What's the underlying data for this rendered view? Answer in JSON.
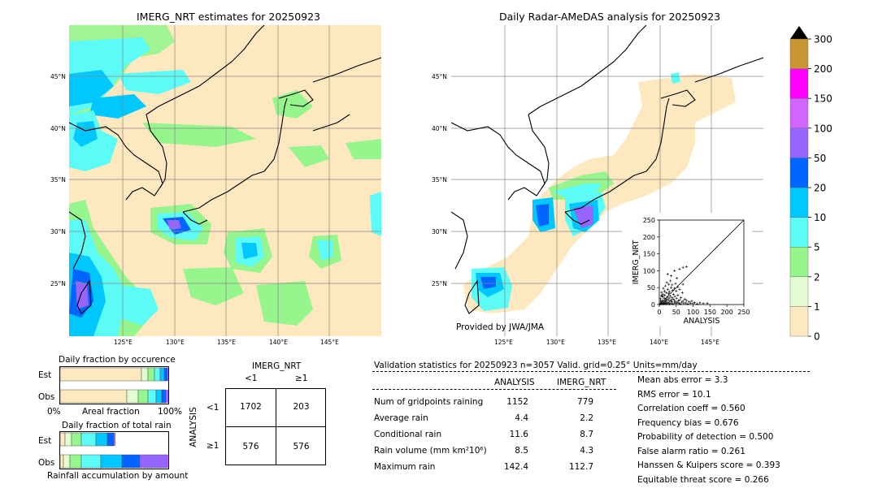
{
  "maps": {
    "left_title": "IMERG_NRT estimates for 20250923",
    "right_title": "Daily Radar-AMeDAS analysis for 20250923",
    "credit": "Provided by JWA/JMA",
    "lat_labels": [
      "45°N",
      "40°N",
      "35°N",
      "30°N",
      "25°N"
    ],
    "lon_labels": [
      "125°E",
      "130°E",
      "135°E",
      "140°E",
      "145°E"
    ]
  },
  "colorbar": {
    "levels": [
      "0",
      "1",
      "2",
      "5",
      "10",
      "20",
      "50",
      "100",
      "150",
      "200",
      "300"
    ],
    "colors": [
      "#fde8c0",
      "#e2fbd0",
      "#96f58c",
      "#5cfbf5",
      "#00c8ff",
      "#0064ff",
      "#9664ff",
      "#d264ff",
      "#ff00ff",
      "#c89632"
    ],
    "extend_color": "#000000"
  },
  "occurrence": {
    "title": "Daily fraction by occurence",
    "rows": [
      "Est",
      "Obs"
    ],
    "xlabel_left": "0%",
    "xlabel_mid": "Areal fraction",
    "xlabel_right": "100%"
  },
  "accumulation": {
    "title": "Daily fraction of total rain",
    "rows": [
      "Est",
      "Obs"
    ],
    "xlabel": "Rainfall accumulation by amount"
  },
  "contingency": {
    "col_title": "IMERG_NRT",
    "col_labels": [
      "<1",
      "≥1"
    ],
    "row_title": "ANALYSIS",
    "row_labels": [
      "<1",
      "≥1"
    ],
    "cells": [
      [
        "1702",
        "203"
      ],
      [
        "576",
        "576"
      ]
    ]
  },
  "validation": {
    "header": "Validation statistics for 20250923  n=3057 Valid. grid=0.25° Units=mm/day",
    "col_analysis": "ANALYSIS",
    "col_imerg": "IMERG_NRT",
    "rows": [
      {
        "label": "Num of gridpoints raining",
        "analysis": "1152",
        "imerg": "779"
      },
      {
        "label": "Average rain",
        "analysis": "4.4",
        "imerg": "2.2"
      },
      {
        "label": "Conditional rain",
        "analysis": "11.6",
        "imerg": "8.7"
      },
      {
        "label": "Rain volume (mm km²10⁶)",
        "analysis": "8.5",
        "imerg": "4.3"
      },
      {
        "label": "Maximum rain",
        "analysis": "142.4",
        "imerg": "112.7"
      }
    ],
    "scores": [
      "Mean abs error =    3.3",
      "RMS error =   10.1",
      "Correlation coeff =  0.560",
      "Frequency bias =  0.676",
      "Probability of detection =  0.500",
      "False alarm ratio =  0.261",
      "Hanssen & Kuipers score =  0.393",
      "Equitable threat score =  0.266"
    ]
  },
  "chart_data": {
    "type": "scatter",
    "xlabel": "ANALYSIS",
    "ylabel": "IMERG_NRT",
    "xlim": [
      0,
      250
    ],
    "ylim": [
      0,
      250
    ],
    "ticks": [
      "0",
      "50",
      "100",
      "150",
      "200",
      "250"
    ],
    "points": [
      [
        2,
        1
      ],
      [
        3,
        4
      ],
      [
        5,
        2
      ],
      [
        6,
        8
      ],
      [
        8,
        3
      ],
      [
        9,
        12
      ],
      [
        10,
        5
      ],
      [
        12,
        1
      ],
      [
        14,
        9
      ],
      [
        15,
        18
      ],
      [
        16,
        4
      ],
      [
        18,
        11
      ],
      [
        20,
        2
      ],
      [
        21,
        15
      ],
      [
        22,
        7
      ],
      [
        24,
        22
      ],
      [
        25,
        3
      ],
      [
        26,
        14
      ],
      [
        28,
        6
      ],
      [
        29,
        19
      ],
      [
        30,
        1
      ],
      [
        31,
        10
      ],
      [
        33,
        25
      ],
      [
        34,
        4
      ],
      [
        35,
        13
      ],
      [
        37,
        8
      ],
      [
        38,
        20
      ],
      [
        40,
        2
      ],
      [
        41,
        16
      ],
      [
        42,
        30
      ],
      [
        44,
        5
      ],
      [
        45,
        12
      ],
      [
        46,
        24
      ],
      [
        48,
        9
      ],
      [
        50,
        3
      ],
      [
        51,
        18
      ],
      [
        53,
        6
      ],
      [
        55,
        28
      ],
      [
        56,
        11
      ],
      [
        58,
        4
      ],
      [
        60,
        14
      ],
      [
        62,
        2
      ],
      [
        64,
        20
      ],
      [
        66,
        7
      ],
      [
        68,
        35
      ],
      [
        70,
        10
      ],
      [
        72,
        3
      ],
      [
        75,
        16
      ],
      [
        78,
        5
      ],
      [
        80,
        12
      ],
      [
        84,
        2
      ],
      [
        88,
        8
      ],
      [
        92,
        4
      ],
      [
        96,
        10
      ],
      [
        100,
        3
      ],
      [
        105,
        6
      ],
      [
        112,
        2
      ],
      [
        120,
        5
      ],
      [
        130,
        3
      ],
      [
        142,
        4
      ],
      [
        10,
        30
      ],
      [
        15,
        40
      ],
      [
        20,
        35
      ],
      [
        25,
        45
      ],
      [
        30,
        38
      ],
      [
        35,
        50
      ],
      [
        40,
        42
      ],
      [
        18,
        55
      ],
      [
        28,
        60
      ],
      [
        45,
        48
      ],
      [
        22,
        65
      ],
      [
        33,
        70
      ],
      [
        12,
        48
      ],
      [
        38,
        58
      ],
      [
        50,
        40
      ],
      [
        55,
        52
      ],
      [
        60,
        45
      ],
      [
        8,
        25
      ],
      [
        16,
        28
      ],
      [
        27,
        33
      ],
      [
        48,
        62
      ],
      [
        35,
        85
      ],
      [
        25,
        90
      ],
      [
        52,
        78
      ],
      [
        70,
        60
      ],
      [
        45,
        100
      ],
      [
        60,
        105
      ],
      [
        70,
        110
      ],
      [
        80,
        112
      ],
      [
        20,
        14
      ],
      [
        3,
        18
      ],
      [
        6,
        26
      ],
      [
        7,
        36
      ],
      [
        4,
        12
      ],
      [
        11,
        22
      ],
      [
        13,
        3
      ],
      [
        17,
        2
      ],
      [
        19,
        6
      ]
    ]
  }
}
